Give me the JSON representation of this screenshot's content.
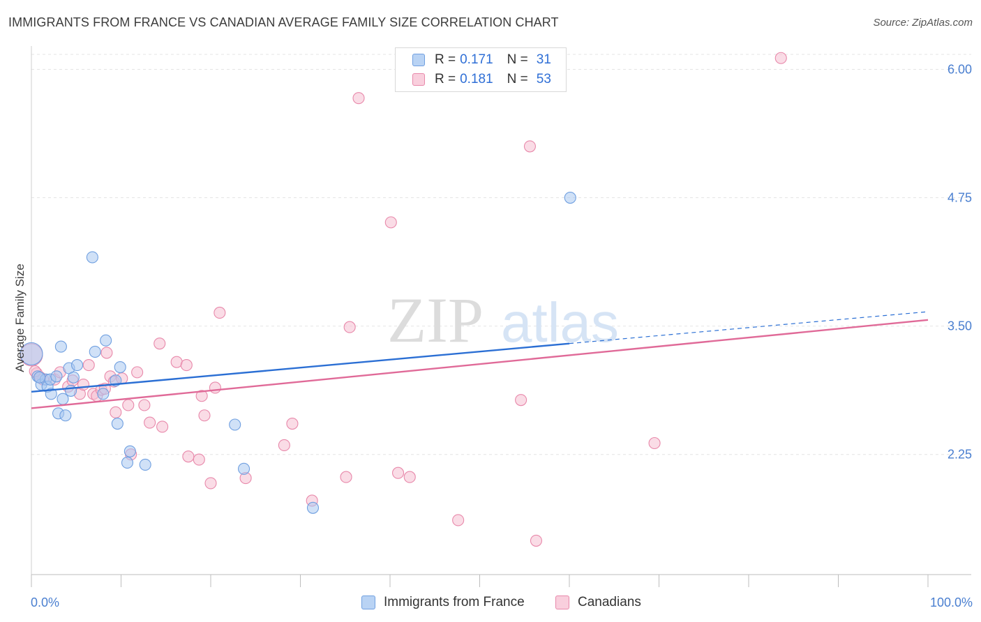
{
  "header": {
    "title": "IMMIGRANTS FROM FRANCE VS CANADIAN AVERAGE FAMILY SIZE CORRELATION CHART",
    "source": "Source: ZipAtlas.com"
  },
  "legend": {
    "series1": {
      "r_label": "R =",
      "r_value": "0.171",
      "n_label": "N =",
      "n_value": "31"
    },
    "series2": {
      "r_label": "R =",
      "r_value": "0.181",
      "n_label": "N =",
      "n_value": "53"
    }
  },
  "watermark": {
    "zip": "ZIP",
    "atlas": "atlas"
  },
  "colors": {
    "blue_fill": "#a9c8f0",
    "blue_stroke": "#6f9fe0",
    "blue_line": "#2b6fd4",
    "pink_fill": "#f6bfd2",
    "pink_stroke": "#e888aa",
    "pink_line": "#e06a98",
    "grid": "#e4e4e4",
    "tick_text": "#4a7fd0"
  },
  "chart_data": {
    "type": "scatter",
    "title": "IMMIGRANTS FROM FRANCE VS CANADIAN AVERAGE FAMILY SIZE CORRELATION CHART",
    "xlabel": "",
    "ylabel": "Average Family Size",
    "xlim": [
      0,
      100
    ],
    "ylim": [
      1.08,
      6.2
    ],
    "x_tick_labels": [
      "0.0%",
      "100.0%"
    ],
    "y_ticks": [
      2.25,
      3.5,
      4.75,
      6.0
    ],
    "y_tick_labels": [
      "2.25",
      "3.50",
      "4.75",
      "6.00"
    ],
    "grid": true,
    "legend_position": "top-center",
    "series": [
      {
        "name": "Immigrants from France",
        "color": "#6f9fe0",
        "R": 0.171,
        "N": 31,
        "trend": {
          "x": [
            0,
            60
          ],
          "y": [
            2.86,
            3.33
          ],
          "dashed_to": [
            100,
            3.64
          ]
        },
        "points": [
          {
            "x": 0.0,
            "y": 3.23,
            "big": true
          },
          {
            "x": 0.7,
            "y": 3.01
          },
          {
            "x": 1.1,
            "y": 2.93
          },
          {
            "x": 1.6,
            "y": 2.98
          },
          {
            "x": 1.8,
            "y": 2.91
          },
          {
            "x": 2.1,
            "y": 2.98
          },
          {
            "x": 2.2,
            "y": 2.84
          },
          {
            "x": 2.8,
            "y": 3.01
          },
          {
            "x": 3.0,
            "y": 2.65
          },
          {
            "x": 3.3,
            "y": 3.3
          },
          {
            "x": 3.5,
            "y": 2.79
          },
          {
            "x": 3.8,
            "y": 2.63
          },
          {
            "x": 4.2,
            "y": 3.09
          },
          {
            "x": 4.4,
            "y": 2.87
          },
          {
            "x": 4.7,
            "y": 3.0
          },
          {
            "x": 5.1,
            "y": 3.12
          },
          {
            "x": 6.8,
            "y": 4.17
          },
          {
            "x": 7.1,
            "y": 3.25
          },
          {
            "x": 8.0,
            "y": 2.84
          },
          {
            "x": 8.3,
            "y": 3.36
          },
          {
            "x": 9.4,
            "y": 2.97
          },
          {
            "x": 9.6,
            "y": 2.55
          },
          {
            "x": 9.9,
            "y": 3.1
          },
          {
            "x": 10.7,
            "y": 2.17
          },
          {
            "x": 11.0,
            "y": 2.28
          },
          {
            "x": 12.7,
            "y": 2.15
          },
          {
            "x": 22.7,
            "y": 2.54
          },
          {
            "x": 23.7,
            "y": 2.11
          },
          {
            "x": 31.4,
            "y": 1.73
          },
          {
            "x": 60.1,
            "y": 4.75
          },
          {
            "x": 0.9,
            "y": 3.0
          }
        ]
      },
      {
        "name": "Canadians",
        "color": "#e888aa",
        "R": 0.181,
        "N": 53,
        "trend": {
          "x": [
            0,
            100
          ],
          "y": [
            2.7,
            3.56
          ]
        },
        "points": [
          {
            "x": 0.0,
            "y": 3.22,
            "big": true
          },
          {
            "x": 0.6,
            "y": 3.04
          },
          {
            "x": 1.3,
            "y": 2.98
          },
          {
            "x": 2.6,
            "y": 2.98
          },
          {
            "x": 3.2,
            "y": 3.05
          },
          {
            "x": 4.1,
            "y": 2.91
          },
          {
            "x": 4.6,
            "y": 2.97
          },
          {
            "x": 5.4,
            "y": 2.84
          },
          {
            "x": 5.8,
            "y": 2.93
          },
          {
            "x": 6.4,
            "y": 3.12
          },
          {
            "x": 6.9,
            "y": 2.84
          },
          {
            "x": 7.3,
            "y": 2.82
          },
          {
            "x": 7.8,
            "y": 2.88
          },
          {
            "x": 8.2,
            "y": 2.89
          },
          {
            "x": 8.4,
            "y": 3.24
          },
          {
            "x": 8.8,
            "y": 3.01
          },
          {
            "x": 9.2,
            "y": 2.96
          },
          {
            "x": 9.4,
            "y": 2.66
          },
          {
            "x": 10.1,
            "y": 2.99
          },
          {
            "x": 10.8,
            "y": 2.73
          },
          {
            "x": 11.1,
            "y": 2.25
          },
          {
            "x": 11.8,
            "y": 3.05
          },
          {
            "x": 12.6,
            "y": 2.73
          },
          {
            "x": 13.2,
            "y": 2.56
          },
          {
            "x": 14.3,
            "y": 3.33
          },
          {
            "x": 14.6,
            "y": 2.52
          },
          {
            "x": 16.2,
            "y": 3.15
          },
          {
            "x": 17.3,
            "y": 3.12
          },
          {
            "x": 17.5,
            "y": 2.23
          },
          {
            "x": 18.7,
            "y": 2.2
          },
          {
            "x": 19.0,
            "y": 2.82
          },
          {
            "x": 19.3,
            "y": 2.63
          },
          {
            "x": 20.0,
            "y": 1.97
          },
          {
            "x": 20.5,
            "y": 2.9
          },
          {
            "x": 21.0,
            "y": 3.63
          },
          {
            "x": 23.9,
            "y": 2.02
          },
          {
            "x": 28.2,
            "y": 2.34
          },
          {
            "x": 29.1,
            "y": 2.55
          },
          {
            "x": 31.3,
            "y": 1.8
          },
          {
            "x": 35.1,
            "y": 2.03
          },
          {
            "x": 35.5,
            "y": 3.49
          },
          {
            "x": 36.5,
            "y": 5.72
          },
          {
            "x": 40.1,
            "y": 4.51
          },
          {
            "x": 40.9,
            "y": 2.07
          },
          {
            "x": 42.2,
            "y": 2.03
          },
          {
            "x": 47.6,
            "y": 1.61
          },
          {
            "x": 54.6,
            "y": 2.78
          },
          {
            "x": 55.6,
            "y": 5.25
          },
          {
            "x": 56.3,
            "y": 1.41
          },
          {
            "x": 69.5,
            "y": 2.36
          },
          {
            "x": 83.6,
            "y": 6.11
          },
          {
            "x": 1.0,
            "y": 3.0
          },
          {
            "x": 0.4,
            "y": 3.06
          }
        ]
      }
    ]
  },
  "bottom_legend": {
    "item1": "Immigrants from France",
    "item2": "Canadians"
  },
  "x_axis": {
    "left_label": "0.0%",
    "right_label": "100.0%"
  }
}
